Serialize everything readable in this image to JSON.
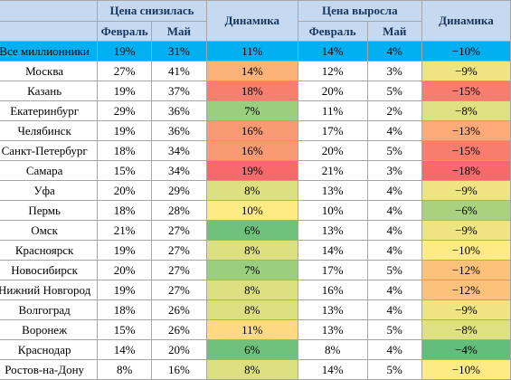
{
  "header": {
    "group_down": "Цена снизилась",
    "group_up": "Цена выросла",
    "dynamics": "Динамика",
    "feb": "Февраль",
    "may": "Май"
  },
  "colors": {
    "header_bg": "#c5d9f1",
    "total_row_bg": "#00b0f0",
    "scale": [
      "#63be7b",
      "#ffeb84",
      "#f8696b"
    ]
  },
  "rows": [
    {
      "city": "Все миллионники",
      "down_feb": "19%",
      "down_may": "31%",
      "down_dyn": "11%",
      "up_feb": "14%",
      "up_may": "4%",
      "up_dyn": "−10%",
      "dd_color": "#00b0f0",
      "ud_color": "#00b0f0"
    },
    {
      "city": "Москва",
      "down_feb": "27%",
      "down_may": "41%",
      "down_dyn": "14%",
      "up_feb": "12%",
      "up_may": "3%",
      "up_dyn": "−9%",
      "dd_color": "#fcb379",
      "ud_color": "#eee582"
    },
    {
      "city": "Казань",
      "down_feb": "19%",
      "down_may": "37%",
      "down_dyn": "18%",
      "up_feb": "20%",
      "up_may": "5%",
      "up_dyn": "−15%",
      "dd_color": "#f87f6d",
      "ud_color": "#f97d6f"
    },
    {
      "city": "Екатеринбург",
      "down_feb": "29%",
      "down_may": "36%",
      "down_dyn": "7%",
      "up_feb": "11%",
      "up_may": "2%",
      "up_dyn": "−8%",
      "dd_color": "#9bce7f",
      "ud_color": "#dee081"
    },
    {
      "city": "Челябинск",
      "down_feb": "19%",
      "down_may": "36%",
      "down_dyn": "16%",
      "up_feb": "17%",
      "up_may": "4%",
      "up_dyn": "−13%",
      "dd_color": "#fa9a74",
      "ud_color": "#fbaa78"
    },
    {
      "city": "Санкт-Петербург",
      "down_feb": "18%",
      "down_may": "34%",
      "down_dyn": "16%",
      "up_feb": "20%",
      "up_may": "5%",
      "up_dyn": "−15%",
      "dd_color": "#fa9a74",
      "ud_color": "#f97d6f"
    },
    {
      "city": "Самара",
      "down_feb": "15%",
      "down_may": "34%",
      "down_dyn": "19%",
      "up_feb": "21%",
      "up_may": "3%",
      "up_dyn": "−18%",
      "dd_color": "#f8696b",
      "ud_color": "#f8696b"
    },
    {
      "city": "Уфа",
      "down_feb": "20%",
      "down_may": "29%",
      "down_dyn": "8%",
      "up_feb": "13%",
      "up_may": "4%",
      "up_dyn": "−9%",
      "dd_color": "#dde081",
      "ud_color": "#eee582"
    },
    {
      "city": "Пермь",
      "down_feb": "18%",
      "down_may": "28%",
      "down_dyn": "10%",
      "up_feb": "10%",
      "up_may": "4%",
      "up_dyn": "−6%",
      "dd_color": "#ffeb84",
      "ud_color": "#a9d27f"
    },
    {
      "city": "Омск",
      "down_feb": "21%",
      "down_may": "27%",
      "down_dyn": "6%",
      "up_feb": "13%",
      "up_may": "4%",
      "up_dyn": "−9%",
      "dd_color": "#6fc17c",
      "ud_color": "#eee582"
    },
    {
      "city": "Красноярск",
      "down_feb": "19%",
      "down_may": "27%",
      "down_dyn": "8%",
      "up_feb": "14%",
      "up_may": "4%",
      "up_dyn": "−10%",
      "dd_color": "#dde081",
      "ud_color": "#ffeb84"
    },
    {
      "city": "Новосибирск",
      "down_feb": "20%",
      "down_may": "27%",
      "down_dyn": "7%",
      "up_feb": "17%",
      "up_may": "5%",
      "up_dyn": "−12%",
      "dd_color": "#9bce7f",
      "ud_color": "#fcc27c"
    },
    {
      "city": "Нижний Новгород",
      "down_feb": "19%",
      "down_may": "27%",
      "down_dyn": "8%",
      "up_feb": "16%",
      "up_may": "4%",
      "up_dyn": "−12%",
      "dd_color": "#dde081",
      "ud_color": "#fcc27c"
    },
    {
      "city": "Волгоград",
      "down_feb": "18%",
      "down_may": "26%",
      "down_dyn": "8%",
      "up_feb": "13%",
      "up_may": "4%",
      "up_dyn": "−9%",
      "dd_color": "#dde081",
      "ud_color": "#eee582"
    },
    {
      "city": "Воронеж",
      "down_feb": "15%",
      "down_may": "26%",
      "down_dyn": "11%",
      "up_feb": "13%",
      "up_may": "5%",
      "up_dyn": "−8%",
      "dd_color": "#fed980",
      "ud_color": "#dee081"
    },
    {
      "city": "Краснодар",
      "down_feb": "14%",
      "down_may": "20%",
      "down_dyn": "6%",
      "up_feb": "8%",
      "up_may": "4%",
      "up_dyn": "−4%",
      "dd_color": "#6fc17c",
      "ud_color": "#63be7b"
    },
    {
      "city": "Ростов-на-Дону",
      "down_feb": "8%",
      "down_may": "16%",
      "down_dyn": "8%",
      "up_feb": "14%",
      "up_may": "5%",
      "up_dyn": "−10%",
      "dd_color": "#dde081",
      "ud_color": "#ffeb84"
    }
  ]
}
